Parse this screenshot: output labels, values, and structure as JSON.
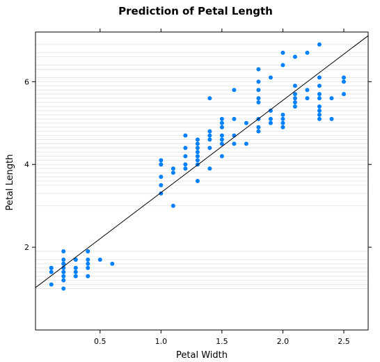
{
  "chart_data": {
    "type": "scatter",
    "title": "Prediction of Petal Length",
    "xlabel": "Petal Width",
    "ylabel": "Petal Length",
    "xlim": [
      -0.03,
      2.7
    ],
    "ylim": [
      0.0,
      7.2
    ],
    "xticks": [
      0.5,
      1.0,
      1.5,
      2.0,
      2.5
    ],
    "yticks": [
      2,
      4,
      6
    ],
    "xtick_labels": [
      "0.5",
      "1.0",
      "1.5",
      "2.0",
      "2.5"
    ],
    "ytick_labels": [
      "2",
      "4",
      "6"
    ],
    "grid": "horizontal lines at each observed y value",
    "point_color": "#0080ff",
    "line_color": "#000000",
    "regression_line": {
      "intercept": 1.09,
      "slope": 2.23
    },
    "x": [
      0.1,
      0.1,
      0.1,
      0.1,
      0.2,
      0.2,
      0.2,
      0.2,
      0.2,
      0.2,
      0.2,
      0.2,
      0.2,
      0.2,
      0.3,
      0.3,
      0.3,
      0.3,
      0.3,
      0.4,
      0.4,
      0.4,
      0.4,
      0.4,
      0.4,
      0.5,
      0.6,
      1.0,
      1.0,
      1.0,
      1.0,
      1.0,
      1.0,
      1.1,
      1.1,
      1.1,
      1.2,
      1.2,
      1.2,
      1.2,
      1.2,
      1.3,
      1.3,
      1.3,
      1.3,
      1.3,
      1.3,
      1.3,
      1.3,
      1.4,
      1.4,
      1.4,
      1.4,
      1.4,
      1.4,
      1.5,
      1.5,
      1.5,
      1.5,
      1.5,
      1.5,
      1.5,
      1.6,
      1.6,
      1.6,
      1.6,
      1.7,
      1.7,
      1.8,
      1.8,
      1.8,
      1.8,
      1.8,
      1.8,
      1.8,
      1.8,
      1.9,
      1.9,
      1.9,
      1.9,
      2.0,
      2.0,
      2.0,
      2.0,
      2.0,
      2.0,
      2.1,
      2.1,
      2.1,
      2.1,
      2.1,
      2.1,
      2.2,
      2.2,
      2.2,
      2.3,
      2.3,
      2.3,
      2.3,
      2.3,
      2.3,
      2.3,
      2.3,
      2.3,
      2.4,
      2.4,
      2.5,
      2.5,
      2.5
    ],
    "y": [
      1.1,
      1.4,
      1.5,
      1.5,
      1.0,
      1.2,
      1.3,
      1.4,
      1.5,
      1.5,
      1.6,
      1.7,
      1.6,
      1.9,
      1.3,
      1.4,
      1.5,
      1.7,
      1.7,
      1.3,
      1.5,
      1.6,
      1.7,
      1.9,
      1.9,
      1.7,
      1.6,
      3.3,
      3.5,
      3.7,
      4.0,
      4.1,
      4.0,
      3.0,
      3.8,
      3.9,
      3.9,
      4.0,
      4.2,
      4.4,
      4.7,
      3.6,
      4.0,
      4.1,
      4.2,
      4.3,
      4.4,
      4.5,
      4.6,
      3.9,
      4.4,
      4.6,
      4.7,
      4.8,
      5.6,
      4.2,
      4.5,
      4.6,
      4.9,
      5.0,
      5.1,
      4.7,
      4.5,
      4.7,
      5.1,
      5.8,
      4.5,
      5.0,
      4.8,
      4.9,
      5.1,
      5.5,
      5.6,
      5.8,
      6.0,
      6.3,
      5.0,
      5.1,
      5.3,
      6.1,
      4.9,
      5.0,
      5.1,
      5.2,
      6.4,
      6.7,
      5.4,
      5.5,
      5.6,
      5.7,
      5.9,
      6.6,
      5.6,
      5.8,
      6.7,
      5.1,
      5.2,
      5.3,
      5.4,
      5.7,
      5.9,
      6.1,
      6.9,
      5.6,
      5.1,
      5.6,
      5.7,
      6.0,
      6.1
    ]
  }
}
